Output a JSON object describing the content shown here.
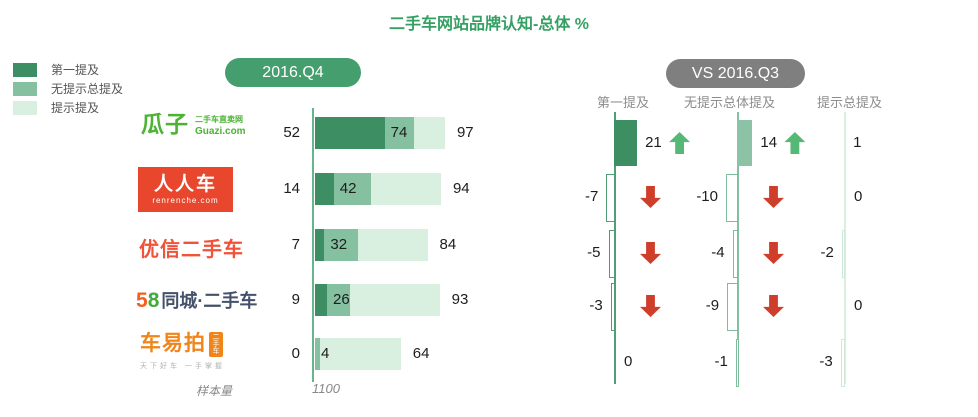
{
  "title": "二手车网站品牌认知-总体 %",
  "badges": {
    "period": "2016.Q4",
    "vs": "VS 2016.Q3"
  },
  "legend": [
    "第一提及",
    "无提示总提及",
    "提示提及"
  ],
  "sample": {
    "label": "样本量",
    "value": "1100"
  },
  "brands": [
    {
      "name": "瓜子二手车直卖网",
      "logo_main": "瓜子",
      "logo_sub1": "二手车直卖网",
      "logo_sub2": "Guazi.com",
      "color": "#4db334"
    },
    {
      "name": "人人车",
      "logo_main": "人人车",
      "logo_sub1": "renrenche.com",
      "color": "#e9472d"
    },
    {
      "name": "优信二手车",
      "logo_main": "优信二手车",
      "color": "#f0523a"
    },
    {
      "name": "58同城·二手车",
      "logo_5": "5",
      "logo_8": "8",
      "logo_rest": "同城·二手车",
      "color_5": "#f55f1e",
      "color_8": "#42ab39",
      "color_rest": "#44516b"
    },
    {
      "name": "车易拍",
      "logo_main": "车易拍",
      "logo_badge": "二手车",
      "logo_tagline": "天下好车 一手掌握",
      "color": "#f08519"
    }
  ],
  "colors": {
    "title_green": "#36a064",
    "first_mention": "#3e8e63",
    "unaided_total": "#85c0a0",
    "aided": "#d9efdf",
    "badge_green": "#449e6e",
    "badge_gray": "#7f7f7f",
    "arrow_up": "#55b877",
    "arrow_down": "#cf3e2b",
    "axis_green": "#66b58c",
    "axis_c1": "#4f9f75",
    "axis_c2": "#85c1a1",
    "axis_c3": "#d9efdf",
    "outline_c1": "#4f9f75",
    "outline_c2": "#7fbd9d",
    "outline_c3": "#cde8d6",
    "fill_c2": "#8cc3a6"
  },
  "chart_data": {
    "type": "bar",
    "orientation": "horizontal-stacked",
    "unit": "%",
    "title": "二手车网站品牌认知-总体 %",
    "categories": [
      "瓜子二手车直卖网",
      "人人车",
      "优信二手车",
      "58同城·二手车",
      "车易拍"
    ],
    "series": [
      {
        "name": "第一提及",
        "values": [
          52,
          14,
          7,
          9,
          0
        ]
      },
      {
        "name": "无提示总提及",
        "values": [
          74,
          42,
          32,
          26,
          4
        ]
      },
      {
        "name": "提示提及",
        "values": [
          97,
          94,
          84,
          93,
          64
        ]
      }
    ],
    "xlim": [
      0,
      100
    ],
    "sample_size": "1100",
    "comparison": {
      "label": "VS 2016.Q3",
      "columns": [
        "第一提及",
        "无提示总体提及",
        "提示总提及"
      ],
      "rows": [
        {
          "brand": "瓜子二手车直卖网",
          "deltas": [
            21,
            14,
            1
          ],
          "arrows": [
            "up",
            "up",
            null
          ]
        },
        {
          "brand": "人人车",
          "deltas": [
            -7,
            -10,
            0
          ],
          "arrows": [
            "down",
            "down",
            null
          ]
        },
        {
          "brand": "优信二手车",
          "deltas": [
            -5,
            -4,
            -2
          ],
          "arrows": [
            "down",
            "down",
            null
          ]
        },
        {
          "brand": "58同城·二手车",
          "deltas": [
            -3,
            -9,
            0
          ],
          "arrows": [
            "down",
            "down",
            null
          ]
        },
        {
          "brand": "车易拍",
          "deltas": [
            0,
            -1,
            -3
          ],
          "arrows": [
            null,
            null,
            null
          ]
        }
      ]
    }
  }
}
